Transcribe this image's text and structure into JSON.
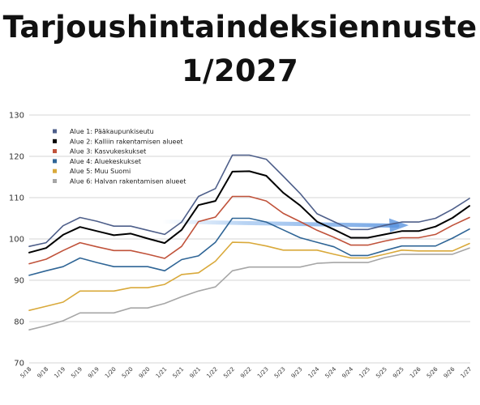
{
  "title_line1": "Tarjoushintaindeksiennuste",
  "title_line2": "1/2027",
  "chart_data": {
    "type": "line",
    "title": "Tarjoushintaindeksiennuste 1/2027",
    "xlabel": "",
    "ylabel": "",
    "ylim": [
      70,
      130
    ],
    "yticks": [
      70,
      80,
      90,
      100,
      110,
      120,
      130
    ],
    "grid": "horizontal",
    "legend_position": "top-left",
    "categories": [
      "5/18",
      "9/18",
      "1/19",
      "5/19",
      "9/19",
      "1/20",
      "5/20",
      "9/20",
      "1/21",
      "5/21",
      "9/21",
      "1/22",
      "5/22",
      "9/22",
      "1/23",
      "5/23",
      "9/23",
      "1/24",
      "5/24",
      "9/24",
      "1/25",
      "5/25",
      "9/25",
      "1/26",
      "5/26",
      "9/26",
      "1/27"
    ],
    "series": [
      {
        "name": "Alue 1: Pääkaupunkiseutu",
        "color": "#4e5f8a",
        "width": 1.6,
        "values": [
          98.2,
          99.1,
          103.2,
          105.2,
          104.3,
          103.1,
          103.1,
          102.1,
          101.1,
          104.1,
          110.3,
          112.2,
          120.3,
          120.3,
          119.3,
          115.2,
          111.0,
          106.1,
          104.2,
          102.3,
          102.3,
          103.3,
          104.1,
          104.1,
          105.0,
          107.2,
          109.8
        ]
      },
      {
        "name": "Alue 2: Kalliin rakentamisen alueet",
        "color": "#000000",
        "width": 2.0,
        "values": [
          96.7,
          97.8,
          101.0,
          102.9,
          101.9,
          100.9,
          101.3,
          100.1,
          99.0,
          102.2,
          108.2,
          109.2,
          116.3,
          116.4,
          115.3,
          111.2,
          108.1,
          104.2,
          102.3,
          100.3,
          100.3,
          101.1,
          101.9,
          101.9,
          103.0,
          105.1,
          108.0
        ]
      },
      {
        "name": "Alue 3: Kasvukeskukset",
        "color": "#c0523a",
        "width": 1.6,
        "values": [
          94.0,
          95.1,
          97.2,
          99.1,
          98.1,
          97.2,
          97.2,
          96.3,
          95.3,
          98.2,
          104.2,
          105.3,
          110.3,
          110.3,
          109.2,
          106.2,
          104.2,
          102.1,
          100.4,
          98.5,
          98.5,
          99.5,
          100.3,
          100.3,
          101.1,
          103.3,
          105.2
        ]
      },
      {
        "name": "Alue 4: Aluekeskukset",
        "color": "#2f6596",
        "width": 1.6,
        "values": [
          91.2,
          92.3,
          93.3,
          95.4,
          94.3,
          93.3,
          93.3,
          93.3,
          92.3,
          95.0,
          95.9,
          99.2,
          105.0,
          105.0,
          104.1,
          102.2,
          100.3,
          99.2,
          98.1,
          96.0,
          96.0,
          97.2,
          98.3,
          98.3,
          98.3,
          100.2,
          102.4
        ]
      },
      {
        "name": "Alue 5: Muu Suomi",
        "color": "#d9a93a",
        "width": 1.6,
        "values": [
          82.7,
          83.7,
          84.7,
          87.4,
          87.4,
          87.4,
          88.2,
          88.2,
          89.0,
          91.4,
          91.8,
          94.6,
          99.2,
          99.1,
          98.3,
          97.3,
          97.3,
          97.3,
          96.3,
          95.4,
          95.4,
          96.3,
          97.3,
          97.1,
          97.1,
          97.1,
          98.9
        ]
      },
      {
        "name": "Alue 6: Halvan rakentamisen alueet",
        "color": "#a6a6a6",
        "width": 1.6,
        "values": [
          78.0,
          79.0,
          80.2,
          82.1,
          82.1,
          82.1,
          83.3,
          83.3,
          84.4,
          86.0,
          87.4,
          88.4,
          92.3,
          93.2,
          93.2,
          93.2,
          93.2,
          94.1,
          94.3,
          94.3,
          94.3,
          95.5,
          96.3,
          96.3,
          96.3,
          96.3,
          97.8
        ]
      }
    ]
  }
}
